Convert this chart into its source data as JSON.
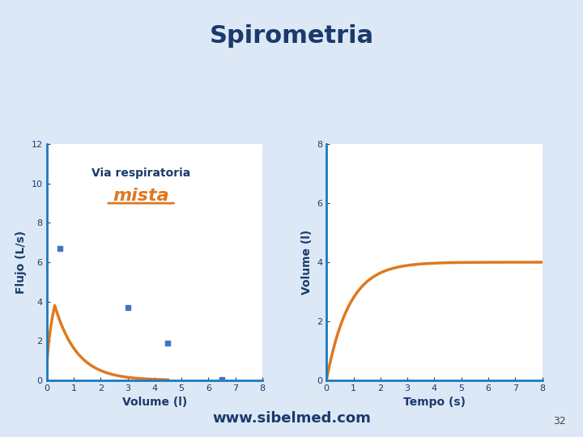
{
  "title": "Spirometria",
  "title_color": "#1a3a6b",
  "title_fontsize": 22,
  "background_color": "#ffffff",
  "slide_bg": "#dce8f5",
  "left_chart": {
    "xlabel": "Volume (l)",
    "ylabel": "Flujo (L/s)",
    "xlim": [
      0,
      8
    ],
    "ylim": [
      0,
      12
    ],
    "yticks": [
      0,
      2,
      4,
      6,
      8,
      10,
      12
    ],
    "xticks": [
      0,
      1,
      2,
      3,
      4,
      5,
      6,
      7,
      8
    ],
    "curve_color": "#e07820",
    "scatter_color": "#4472c4",
    "scatter_points": [
      [
        0.5,
        6.7
      ],
      [
        3.0,
        3.7
      ],
      [
        4.5,
        1.9
      ],
      [
        6.5,
        0.05
      ]
    ],
    "peak_volume": 0.3,
    "peak_flow": 3.8,
    "total_volume": 4.5,
    "decay_rate": 1.2
  },
  "right_chart": {
    "xlabel": "Tempo (s)",
    "ylabel": "Volume (l)",
    "xlim": [
      0,
      8
    ],
    "ylim": [
      0,
      8
    ],
    "yticks": [
      0,
      2,
      4,
      6,
      8
    ],
    "xticks": [
      0,
      1,
      2,
      3,
      4,
      5,
      6,
      7,
      8
    ],
    "curve_color": "#e07820",
    "fvc": 4.0,
    "k": 1.2
  },
  "annotation_label": "Via respiratoria",
  "annotation_bold": "mista",
  "annotation_color": "#e07820",
  "annotation_label_color": "#1a3a6b",
  "footer_text": "www.sibelmed.com",
  "footer_color": "#1a3a6b",
  "page_number": "32",
  "label_color": "#1a3a6b",
  "tick_color": "#1a3a6b",
  "axis_spine_color": "#1a7abf"
}
